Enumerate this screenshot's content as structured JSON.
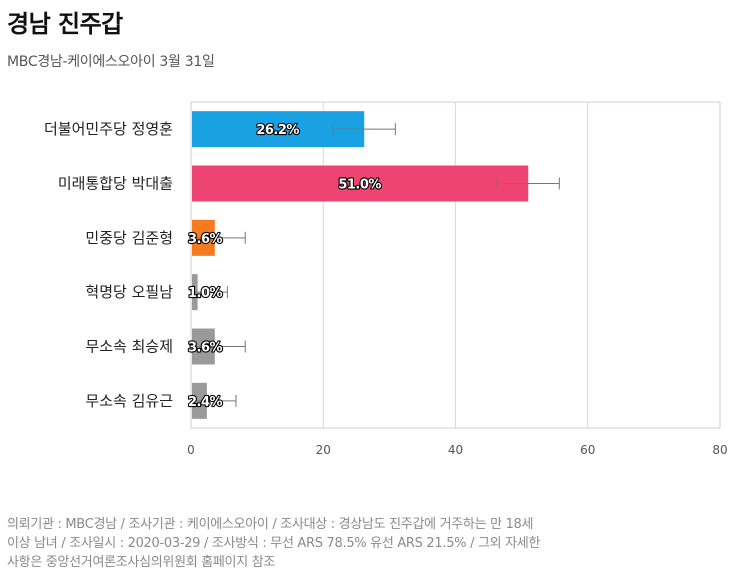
{
  "header": {
    "title": "경남 진주갑",
    "subtitle": "MBC경남-케이에스오아이 3월 31일"
  },
  "chart_data": {
    "type": "bar",
    "orientation": "horizontal",
    "categories": [
      "더불어민주당 정영훈",
      "미래통합당 박대출",
      "민중당 김준형",
      "혁명당 오필남",
      "무소속 최승제",
      "무소속 김유근"
    ],
    "values": [
      26.2,
      51.0,
      3.6,
      1.0,
      3.6,
      2.4
    ],
    "value_labels": [
      "26.2%",
      "51.0%",
      "3.6%",
      "1.0%",
      "3.6%",
      "2.4%"
    ],
    "error_bars": [
      [
        21.5,
        30.9
      ],
      [
        46.3,
        55.7
      ],
      [
        0.0,
        8.2
      ],
      [
        0.0,
        5.5
      ],
      [
        0.0,
        8.2
      ],
      [
        0.0,
        6.8
      ]
    ],
    "colors": [
      "#1aa1e3",
      "#ee4472",
      "#f47b20",
      "#9a9a9a",
      "#9a9a9a",
      "#9a9a9a"
    ],
    "xlim": [
      0,
      80
    ],
    "xticks": [
      "0",
      "20",
      "40",
      "60",
      "80"
    ],
    "grid": true,
    "xlabel": "",
    "ylabel": ""
  },
  "footnote": {
    "line1": "의뢰기관 : MBC경남 / 조사기관 : 케이에스오아이 / 조사대상 : 경상남도 진주갑에 거주하는 만 18세",
    "line2": "이상 남녀 / 조사일시 : 2020-03-29 / 조사방식 : 무선 ARS 78.5% 유선 ARS 21.5% / 그외 자세한",
    "line3": "사항은 중앙선거여론조사심의위원회 홈페이지 참조"
  }
}
